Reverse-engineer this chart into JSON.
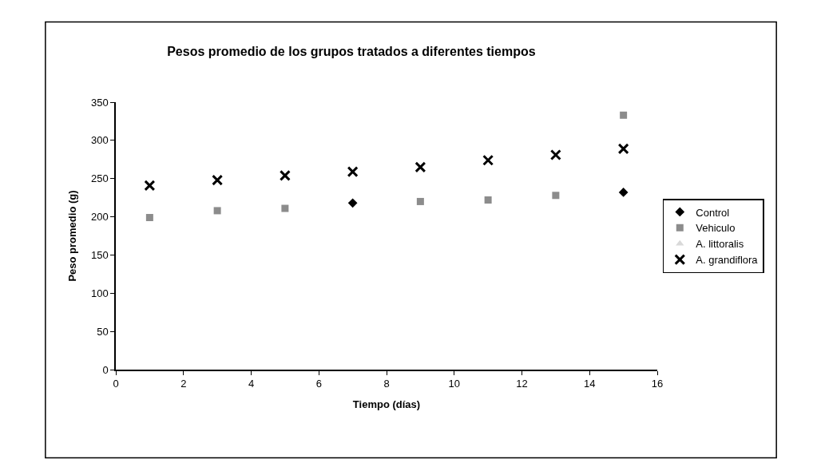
{
  "chart_data": {
    "type": "scatter",
    "title": "Pesos promedio de los grupos tratados a diferentes tiempos",
    "xlabel": "Tiempo (días)",
    "ylabel": "Peso promedio (g)",
    "x": [
      1,
      3,
      5,
      7,
      9,
      11,
      13,
      15
    ],
    "series": [
      {
        "name": "Control",
        "color": "#000000",
        "marker": "diamond",
        "values": [
          null,
          null,
          null,
          218,
          null,
          null,
          null,
          232
        ]
      },
      {
        "name": "Vehiculo",
        "color": "#8c8c8c",
        "marker": "square",
        "values": [
          199,
          208,
          211,
          null,
          220,
          222,
          228,
          333
        ]
      },
      {
        "name": "A. littoralis",
        "color": "#d9d9d9",
        "marker": "triangle",
        "values": [
          null,
          null,
          null,
          null,
          null,
          null,
          null,
          null
        ]
      },
      {
        "name": "A. grandiflora",
        "color": "#000000",
        "marker": "cross",
        "values": [
          241,
          248,
          254,
          259,
          265,
          274,
          281,
          289
        ]
      }
    ],
    "xlim": [
      0,
      16
    ],
    "xticks": [
      0,
      2,
      4,
      6,
      8,
      10,
      12,
      14,
      16
    ],
    "ylim": [
      0,
      350
    ],
    "yticks": [
      0,
      50,
      100,
      150,
      200,
      250,
      300,
      350
    ],
    "grid": false,
    "legend": "right"
  }
}
